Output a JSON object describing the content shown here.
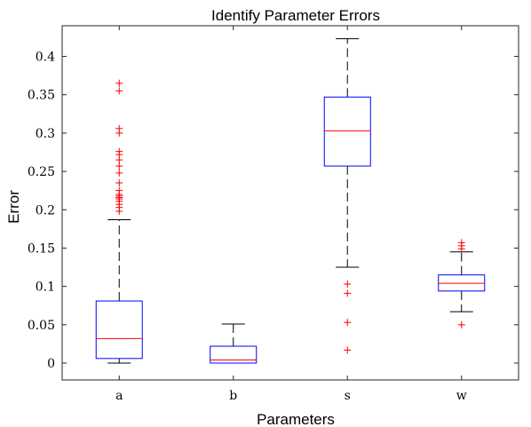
{
  "chart_data": {
    "type": "box",
    "title": "Identify Parameter Errors",
    "xlabel": "Parameters",
    "ylabel": "Error",
    "categories": [
      "a",
      "b",
      "s",
      "w"
    ],
    "ylim": [
      -0.022,
      0.44
    ],
    "yticks": [
      0,
      0.05,
      0.1,
      0.15,
      0.2,
      0.25,
      0.3,
      0.35,
      0.4
    ],
    "ytick_labels": [
      "0",
      "0.05",
      "0.1",
      "0.15",
      "0.2",
      "0.25",
      "0.3",
      "0.35",
      "0.4"
    ],
    "grid": false,
    "boxes": [
      {
        "category": "a",
        "whisker_low": 0.0,
        "q1": 0.006,
        "median": 0.032,
        "q3": 0.081,
        "whisker_high": 0.187,
        "outliers": [
          0.198,
          0.203,
          0.207,
          0.211,
          0.214,
          0.216,
          0.218,
          0.22,
          0.225,
          0.235,
          0.248,
          0.257,
          0.265,
          0.272,
          0.276,
          0.3,
          0.306,
          0.355,
          0.365
        ]
      },
      {
        "category": "b",
        "whisker_low": 0.0,
        "q1": 0.0,
        "median": 0.004,
        "q3": 0.022,
        "whisker_high": 0.051,
        "outliers": []
      },
      {
        "category": "s",
        "whisker_low": 0.125,
        "q1": 0.257,
        "median": 0.303,
        "q3": 0.347,
        "whisker_high": 0.423,
        "outliers": [
          0.017,
          0.053,
          0.091,
          0.103
        ]
      },
      {
        "category": "w",
        "whisker_low": 0.067,
        "q1": 0.094,
        "median": 0.104,
        "q3": 0.115,
        "whisker_high": 0.145,
        "outliers": [
          0.05,
          0.149,
          0.153,
          0.157
        ]
      }
    ],
    "colors": {
      "box": "#0000ff",
      "median": "#ff0000",
      "whisker": "#000000",
      "outlier": "#ff0000"
    }
  }
}
